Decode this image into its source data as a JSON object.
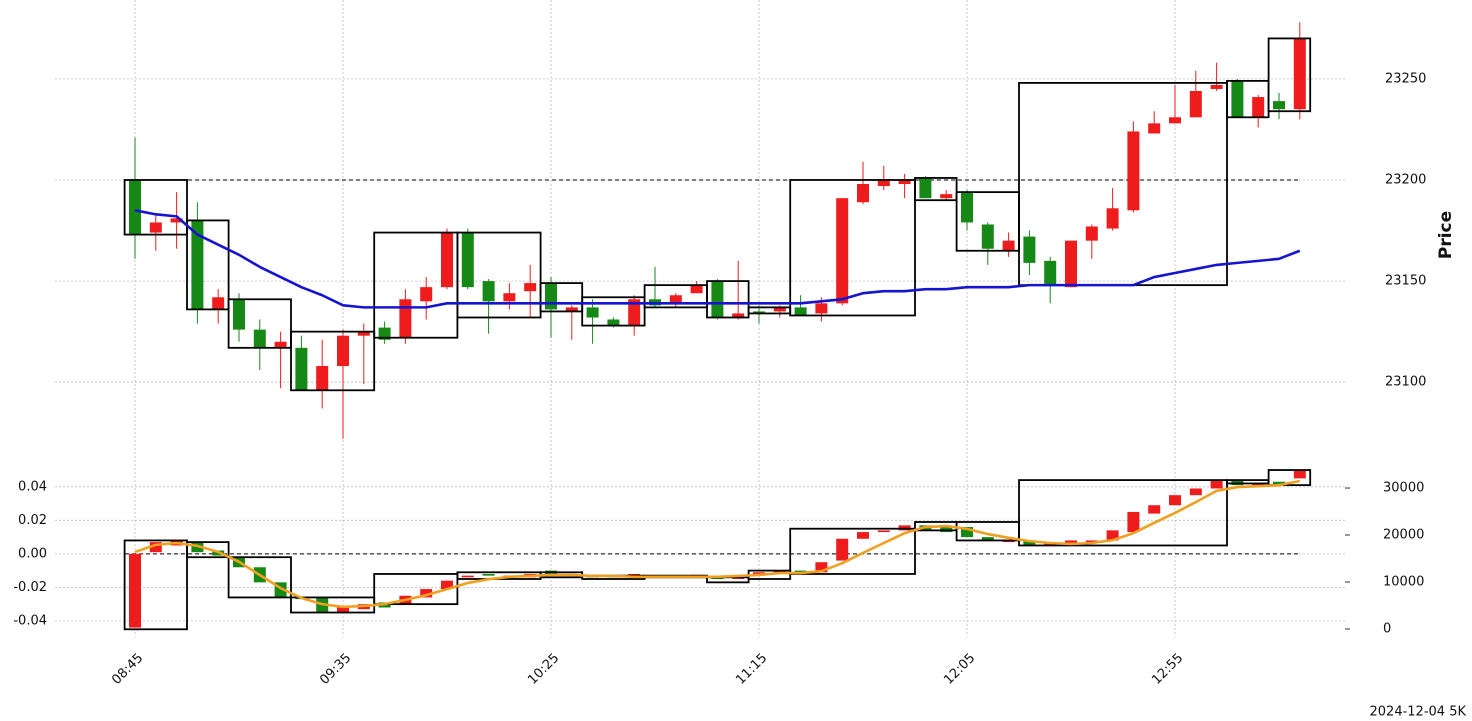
{
  "chart_data": [
    {
      "type": "candlestick",
      "ylabel": "Price",
      "footer": "2024-12-04 5K",
      "categories": [
        "08:45",
        null,
        null,
        null,
        null,
        null,
        null,
        null,
        null,
        null,
        "09:35",
        null,
        null,
        null,
        null,
        null,
        null,
        null,
        null,
        null,
        "10:25",
        null,
        null,
        null,
        null,
        null,
        null,
        null,
        null,
        null,
        "11:15",
        null,
        null,
        null,
        null,
        null,
        null,
        null,
        null,
        null,
        "12:05",
        null,
        null,
        null,
        null,
        null,
        null,
        null,
        null,
        null,
        "12:55",
        null,
        null,
        null,
        null,
        null,
        null
      ],
      "open": [
        23200,
        23174,
        23179,
        23180,
        23136,
        23141,
        23126,
        23117,
        23117,
        23096,
        23108,
        23123,
        23127,
        23122,
        23140,
        23147,
        23174,
        23150,
        23140,
        23145,
        23149,
        23135,
        23137,
        23131,
        23128,
        23141,
        23139,
        23144,
        23150,
        23132,
        23135,
        23135,
        23137,
        23134,
        23139,
        23189,
        23197,
        23198,
        23201,
        23191,
        23194,
        23178,
        23165,
        23172,
        23160,
        23147,
        23170,
        23176,
        23185,
        23223,
        23228,
        23231,
        23245,
        23249,
        23231,
        23239,
        23235
      ],
      "high": [
        23221,
        23183,
        23194,
        23189,
        23146,
        23144,
        23131,
        23125,
        23123,
        23121,
        23126,
        23129,
        23130,
        23146,
        23152,
        23176,
        23176,
        23151,
        23149,
        23158,
        23152,
        23138,
        23141,
        23132,
        23143,
        23157,
        23144,
        23150,
        23151,
        23160,
        23138,
        23138,
        23143,
        23142,
        23191,
        23209,
        23207,
        23203,
        23202,
        23195,
        23195,
        23179,
        23174,
        23175,
        23162,
        23170,
        23178,
        23196,
        23229,
        23234,
        23247,
        23254,
        23258,
        23250,
        23242,
        23243,
        23278
      ],
      "low": [
        23161,
        23165,
        23166,
        23129,
        23129,
        23120,
        23106,
        23097,
        23096,
        23087,
        23072,
        23099,
        23119,
        23119,
        23131,
        23146,
        23146,
        23124,
        23136,
        23132,
        23122,
        23121,
        23119,
        23127,
        23123,
        23137,
        23137,
        23144,
        23131,
        23131,
        23129,
        23132,
        23133,
        23130,
        23138,
        23188,
        23195,
        23191,
        23191,
        23190,
        23175,
        23158,
        23162,
        23153,
        23139,
        23147,
        23161,
        23175,
        23184,
        23223,
        23228,
        23231,
        23244,
        23231,
        23226,
        23230,
        23230
      ],
      "close": [
        23173,
        23179,
        23181,
        23136,
        23142,
        23126,
        23117,
        23120,
        23096,
        23108,
        23123,
        23125,
        23121,
        23141,
        23147,
        23174,
        23147,
        23140,
        23144,
        23149,
        23136,
        23137,
        23132,
        23128,
        23141,
        23138,
        23143,
        23148,
        23132,
        23134,
        23134,
        23137,
        23133,
        23139,
        23191,
        23198,
        23200,
        23200,
        23191,
        23193,
        23179,
        23166,
        23170,
        23159,
        23148,
        23170,
        23177,
        23186,
        23224,
        23228,
        23231,
        23244,
        23247,
        23231,
        23241,
        23235,
        23270
      ],
      "up_color": "#ee1c1c",
      "down_color": "#168816",
      "lines": [
        {
          "color": "#1515d0",
          "values": [
            23185,
            23183,
            23182,
            23173,
            23168,
            23163,
            23157,
            23152,
            23147,
            23143,
            23138,
            23137,
            23137,
            23137,
            23137,
            23139,
            23139,
            23139,
            23139,
            23139,
            23139,
            23139,
            23139,
            23139,
            23139,
            23139,
            23139,
            23139,
            23139,
            23139,
            23139,
            23139,
            23139,
            23140,
            23141,
            23144,
            23145,
            23145,
            23146,
            23146,
            23147,
            23147,
            23147,
            23148,
            23148,
            23148,
            23148,
            23148,
            23148,
            23152,
            23154,
            23156,
            23158,
            23159,
            23160,
            23161,
            23165
          ]
        }
      ],
      "boxes": [
        {
          "candles": 3,
          "high": 23200,
          "low": 23173
        },
        {
          "candles": 2,
          "high": 23180,
          "low": 23136
        },
        {
          "candles": 3,
          "high": 23141,
          "low": 23117
        },
        {
          "candles": 4,
          "high": 23125,
          "low": 23096
        },
        {
          "candles": 4,
          "high": 23174,
          "low": 23122
        },
        {
          "candles": 4,
          "high": 23174,
          "low": 23132
        },
        {
          "candles": 2,
          "high": 23149,
          "low": 23135
        },
        {
          "candles": 3,
          "high": 23142,
          "low": 23128
        },
        {
          "candles": 3,
          "high": 23148,
          "low": 23137
        },
        {
          "candles": 2,
          "high": 23150,
          "low": 23132
        },
        {
          "candles": 2,
          "high": 23137,
          "low": 23134
        },
        {
          "candles": 6,
          "high": 23200,
          "low": 23133
        },
        {
          "candles": 2,
          "high": 23201,
          "low": 23190
        },
        {
          "candles": 3,
          "high": 23194,
          "low": 23165
        },
        {
          "candles": 10,
          "high": 23248,
          "low": 23148
        },
        {
          "candles": 2,
          "high": 23249,
          "low": 23231
        },
        {
          "candles": 2,
          "high": 23270,
          "low": 23234
        }
      ],
      "hline": 23200,
      "ylim": [
        23064,
        23289
      ],
      "yticks": [
        23100,
        23150,
        23200,
        23250
      ],
      "grid": true
    },
    {
      "type": "candlestick",
      "open": [
        -0.044,
        0.001,
        0.005,
        0.007,
        0.002,
        -0.002,
        -0.008,
        -0.017,
        -0.026,
        -0.026,
        -0.035,
        -0.033,
        -0.029,
        -0.03,
        -0.026,
        -0.021,
        -0.014,
        -0.012,
        -0.014,
        -0.014,
        -0.01,
        -0.013,
        -0.013,
        -0.013,
        -0.014,
        -0.013,
        -0.014,
        -0.0135,
        -0.013,
        -0.015,
        -0.013,
        -0.011,
        -0.01,
        -0.011,
        -0.004,
        0.009,
        0.013,
        0.014,
        0.017,
        0.016,
        0.016,
        0.01,
        0.007,
        0.008,
        0.005,
        0.006,
        0.007,
        0.008,
        0.013,
        0.024,
        0.029,
        0.035,
        0.039,
        0.044,
        0.041,
        0.043,
        0.045
      ],
      "close": [
        0,
        0.007,
        0.008,
        0.001,
        -0.001,
        -0.008,
        -0.017,
        -0.026,
        -0.027,
        -0.035,
        -0.031,
        -0.03,
        -0.032,
        -0.025,
        -0.021,
        -0.016,
        -0.013,
        -0.013,
        -0.013,
        -0.012,
        -0.013,
        -0.012,
        -0.014,
        -0.014,
        -0.012,
        -0.014,
        -0.013,
        -0.0125,
        -0.015,
        -0.013,
        -0.011,
        -0.01,
        -0.012,
        -0.005,
        0.009,
        0.013,
        0.014,
        0.017,
        0.014,
        0.013,
        0.01,
        0.008,
        0.008,
        0.005,
        0.007,
        0.008,
        0.008,
        0.014,
        0.025,
        0.029,
        0.035,
        0.039,
        0.044,
        0.041,
        0.042,
        0.041,
        0.05
      ],
      "up_color": "#ee1c1c",
      "down_color": "#168816",
      "lines": [
        {
          "color": "#f0a020",
          "axis": "y2",
          "values": [
            16400,
            17900,
            18300,
            17700,
            16400,
            14300,
            11500,
            8700,
            6600,
            5300,
            4700,
            4900,
            5300,
            6200,
            7200,
            8500,
            9800,
            10600,
            11100,
            11300,
            11500,
            11500,
            11300,
            11300,
            11100,
            11100,
            11100,
            11100,
            11100,
            11300,
            11500,
            11900,
            11900,
            12300,
            14000,
            16200,
            18300,
            20400,
            21700,
            21900,
            21300,
            20200,
            19400,
            18700,
            18300,
            18100,
            18300,
            18900,
            20400,
            22600,
            24700,
            27000,
            29400,
            30200,
            30400,
            30600,
            31500
          ]
        }
      ],
      "boxes": [
        {
          "candles": 3,
          "high": 0.008,
          "low": -0.045
        },
        {
          "candles": 2,
          "high": 0.007,
          "low": -0.002
        },
        {
          "candles": 3,
          "high": -0.002,
          "low": -0.026
        },
        {
          "candles": 4,
          "high": -0.026,
          "low": -0.035
        },
        {
          "candles": 4,
          "high": -0.012,
          "low": -0.03
        },
        {
          "candles": 4,
          "high": -0.011,
          "low": -0.015
        },
        {
          "candles": 2,
          "high": -0.011,
          "low": -0.014
        },
        {
          "candles": 3,
          "high": -0.013,
          "low": -0.015
        },
        {
          "candles": 3,
          "high": -0.013,
          "low": -0.014
        },
        {
          "candles": 2,
          "high": -0.014,
          "low": -0.017
        },
        {
          "candles": 2,
          "high": -0.01,
          "low": -0.015
        },
        {
          "candles": 6,
          "high": 0.015,
          "low": -0.012
        },
        {
          "candles": 2,
          "high": 0.019,
          "low": 0.014
        },
        {
          "candles": 3,
          "high": 0.019,
          "low": 0.008
        },
        {
          "candles": 10,
          "high": 0.044,
          "low": 0.005
        },
        {
          "candles": 2,
          "high": 0.044,
          "low": 0.042
        },
        {
          "candles": 2,
          "high": 0.05,
          "low": 0.041
        }
      ],
      "hline": 0,
      "ylim": [
        -0.0496,
        0.053
      ],
      "yticks": [
        -0.04,
        -0.02,
        {
          "value": 0,
          "label": "0.00"
        },
        0.02,
        0.04
      ],
      "y2lim": [
        -1700,
        34900
      ],
      "y2ticks": [
        0,
        10000,
        20000,
        30000
      ],
      "grid": true
    }
  ]
}
